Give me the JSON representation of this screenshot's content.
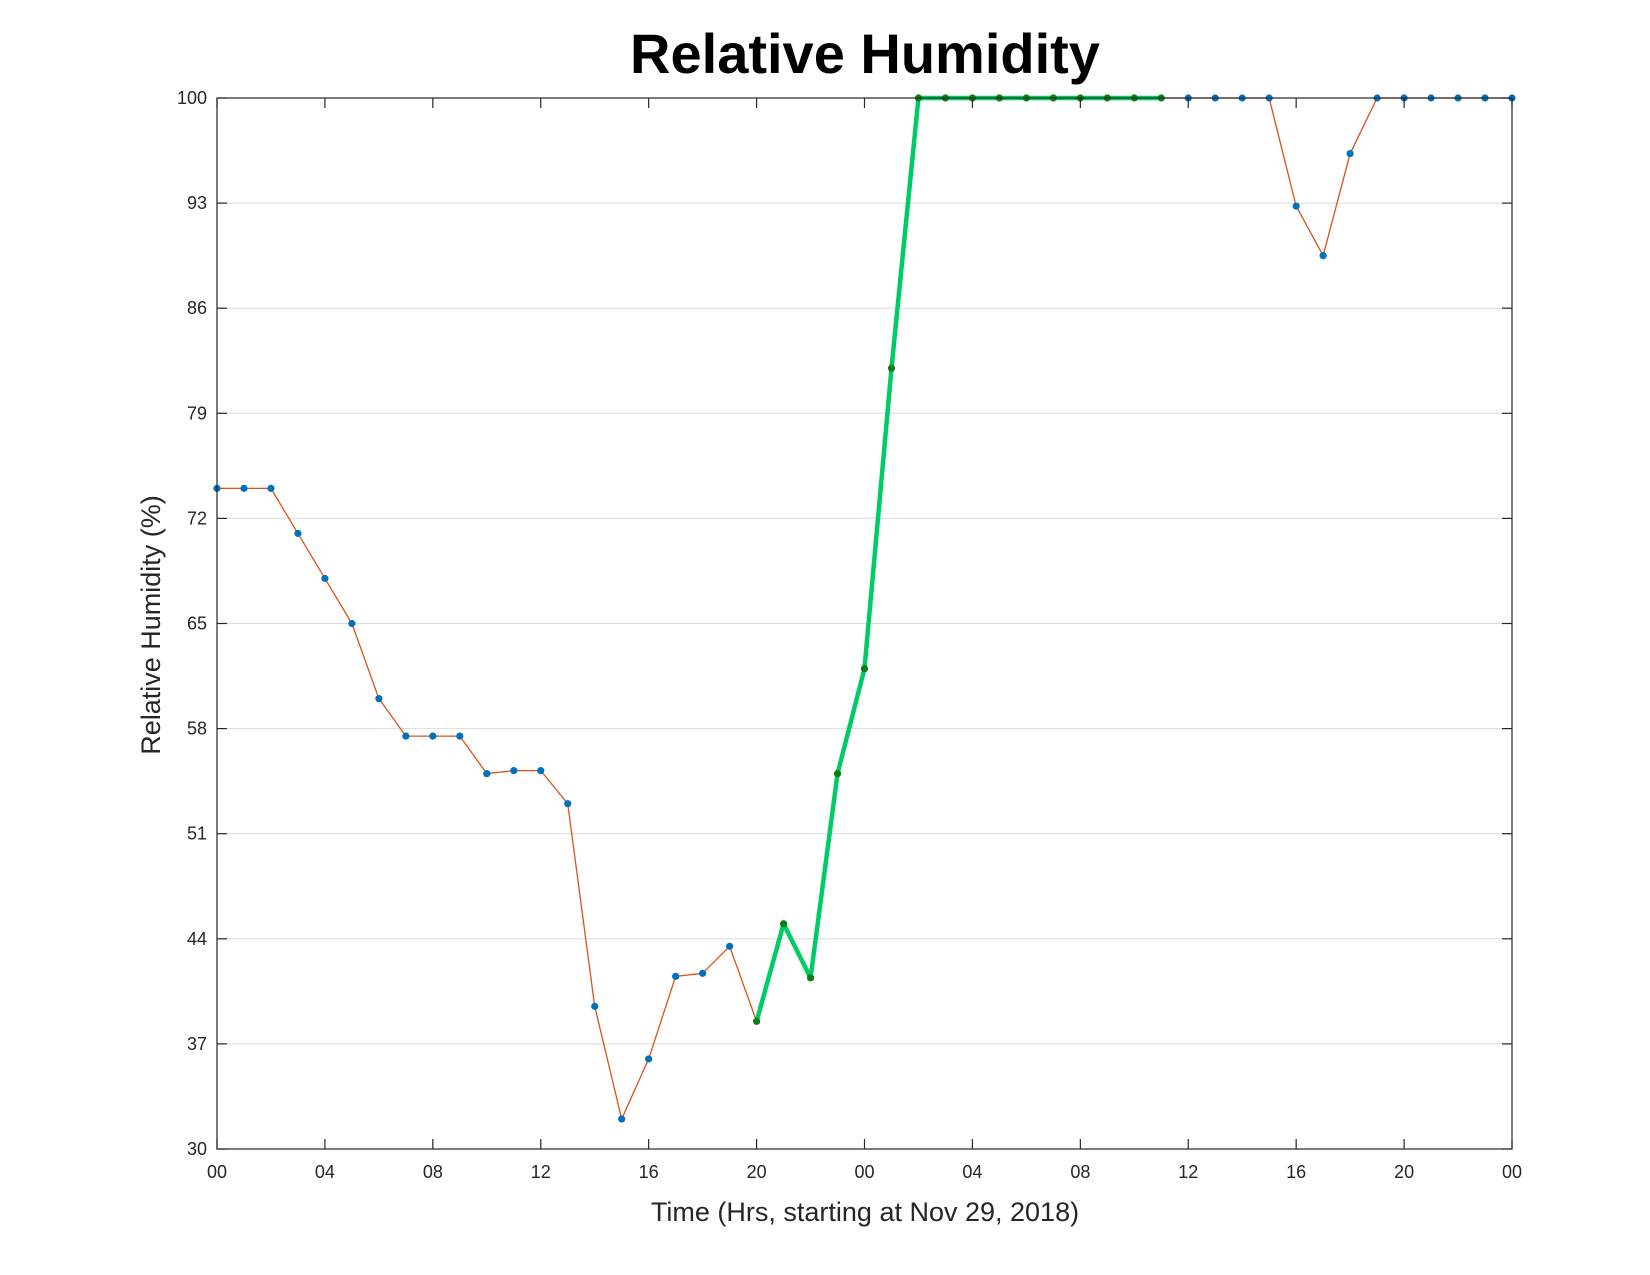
{
  "chart_data": {
    "type": "line",
    "title": "Relative Humidity",
    "xlabel": "Time (Hrs, starting at Nov 29, 2018)",
    "ylabel": "Relative Humidity (%)",
    "xlim": [
      0,
      48
    ],
    "ylim": [
      30,
      100
    ],
    "xticks": [
      0,
      4,
      8,
      12,
      16,
      20,
      24,
      28,
      32,
      36,
      40,
      44,
      48
    ],
    "xtick_labels": [
      "00",
      "04",
      "08",
      "12",
      "16",
      "20",
      "00",
      "04",
      "08",
      "12",
      "16",
      "20",
      "00"
    ],
    "yticks": [
      30,
      37,
      44,
      51,
      58,
      65,
      72,
      79,
      86,
      93,
      100
    ],
    "ytick_labels": [
      "30",
      "37",
      "44",
      "51",
      "58",
      "65",
      "72",
      "79",
      "86",
      "93",
      "100"
    ],
    "grid": "horizontal",
    "x": [
      0,
      1,
      2,
      3,
      4,
      5,
      6,
      7,
      8,
      9,
      10,
      11,
      12,
      13,
      14,
      15,
      16,
      17,
      18,
      19,
      20,
      21,
      22,
      23,
      24,
      25,
      26,
      27,
      28,
      29,
      30,
      31,
      32,
      33,
      34,
      35,
      36,
      37,
      38,
      39,
      40,
      41,
      42,
      43,
      44,
      45,
      46,
      47,
      48
    ],
    "values": [
      74,
      74,
      74,
      71,
      68,
      65,
      60,
      57.5,
      57.5,
      57.5,
      55,
      55.2,
      55.2,
      53,
      39.5,
      32,
      36,
      41.5,
      41.7,
      43.5,
      38.5,
      45,
      41.4,
      55,
      62,
      82,
      100,
      100,
      100,
      100,
      100,
      100,
      100,
      100,
      100,
      100,
      100,
      100,
      100,
      100,
      92.8,
      89.5,
      96.3,
      100,
      100,
      100,
      100,
      100,
      100
    ],
    "highlight_range": [
      20,
      35
    ],
    "colors": {
      "line": "#d95319",
      "marker": "#0072bd",
      "highlight_line": "#00cc66",
      "highlight_marker": "#0b7d12",
      "axes": "#262626",
      "grid": "#dcdcdc"
    }
  }
}
